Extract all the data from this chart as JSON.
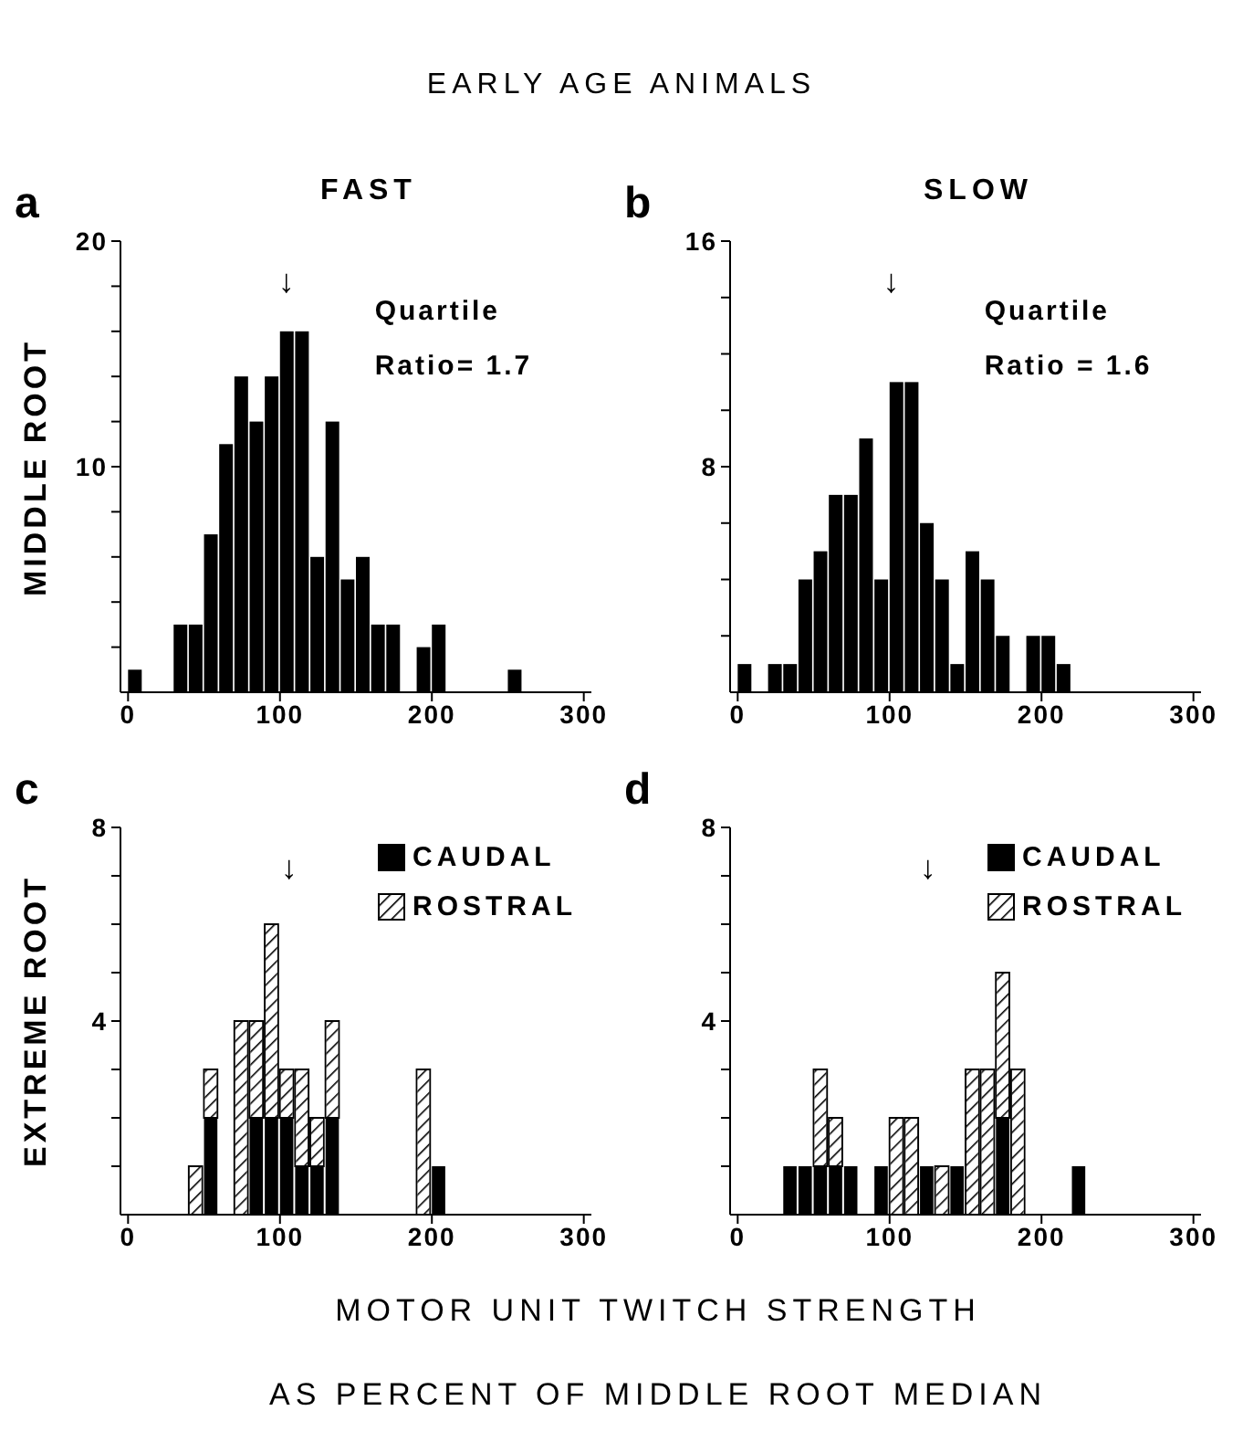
{
  "chart_data": [
    {
      "type": "histogram",
      "title": "EARLY AGE ANIMALS",
      "subtitle": "FAST",
      "ylabel": "MIDDLE ROOT",
      "color": "#000000",
      "bins": [
        0,
        10,
        20,
        30,
        40,
        50,
        60,
        70,
        80,
        90,
        100,
        110,
        120,
        130,
        140,
        150,
        160,
        170,
        180,
        190,
        200,
        210,
        220,
        230,
        240,
        250,
        260
      ],
      "values": [
        1,
        0,
        0,
        3,
        3,
        7,
        11,
        14,
        12,
        14,
        16,
        16,
        6,
        12,
        5,
        6,
        3,
        3,
        0,
        2,
        3,
        0,
        0,
        0,
        0,
        1
      ],
      "xlim": [
        -5,
        305
      ],
      "xticks": [
        0,
        100,
        200,
        300
      ],
      "ylim": [
        0,
        20
      ],
      "yticks": [
        {
          "value": 2,
          "label": null
        },
        {
          "value": 4,
          "label": null
        },
        {
          "value": 6,
          "label": null
        },
        {
          "value": 8,
          "label": null
        },
        10,
        {
          "value": 12,
          "label": null
        },
        {
          "value": 14,
          "label": null
        },
        {
          "value": 16,
          "label": null
        },
        {
          "value": 18,
          "label": null
        },
        20
      ],
      "annotations": [
        "a",
        "↓",
        "Quartile\nRatio= 1.7"
      ]
    },
    {
      "type": "histogram",
      "subtitle": "SLOW",
      "color": "#000000",
      "bins": [
        0,
        10,
        20,
        30,
        40,
        50,
        60,
        70,
        80,
        90,
        100,
        110,
        120,
        130,
        140,
        150,
        160,
        170,
        180,
        190,
        200,
        210,
        220
      ],
      "values": [
        1,
        0,
        1,
        1,
        4,
        5,
        7,
        7,
        9,
        4,
        11,
        11,
        6,
        4,
        1,
        5,
        4,
        2,
        0,
        2,
        2,
        1
      ],
      "xlim": [
        -5,
        305
      ],
      "xticks": [
        0,
        100,
        200,
        300
      ],
      "ylim": [
        0,
        16
      ],
      "yticks": [
        {
          "value": 2,
          "label": null
        },
        {
          "value": 4,
          "label": null
        },
        {
          "value": 6,
          "label": null
        },
        8,
        {
          "value": 10,
          "label": null
        },
        {
          "value": 12,
          "label": null
        },
        {
          "value": 14,
          "label": null
        },
        16
      ],
      "annotations": [
        "b",
        "↓",
        "Quartile\nRatio = 1.6"
      ]
    },
    {
      "type": "bar",
      "stacked": true,
      "ylabel": "EXTREME ROOT",
      "xlabel": "MOTOR UNIT TWITCH STRENGTH\nAS PERCENT OF MIDDLE ROOT MEDIAN",
      "legend": "top right",
      "x": [
        45,
        55,
        65,
        75,
        85,
        95,
        105,
        115,
        125,
        135,
        145,
        155,
        165,
        175,
        185,
        195,
        205
      ],
      "series": [
        {
          "name": "CAUDAL",
          "color": "#000000",
          "values": [
            0,
            2,
            0,
            0,
            2,
            2,
            2,
            1,
            1,
            2,
            0,
            0,
            0,
            0,
            0,
            0,
            1
          ]
        },
        {
          "name": "ROSTRAL",
          "color": "#ffffff",
          "values": [
            1,
            1,
            0,
            4,
            2,
            4,
            1,
            2,
            1,
            2,
            0,
            0,
            0,
            0,
            0,
            3,
            0
          ]
        }
      ],
      "xlim": [
        -5,
        305
      ],
      "xticks": [
        0,
        100,
        200,
        300
      ],
      "ylim": [
        0,
        8
      ],
      "yticks": [
        {
          "value": 1,
          "label": null
        },
        {
          "value": 2,
          "label": null
        },
        {
          "value": 3,
          "label": null
        },
        4,
        {
          "value": 5,
          "label": null
        },
        {
          "value": 6,
          "label": null
        },
        {
          "value": 7,
          "label": null
        },
        8
      ],
      "annotations": [
        "c",
        "↓"
      ]
    },
    {
      "type": "bar",
      "stacked": true,
      "legend": "top right",
      "x": [
        35,
        45,
        55,
        65,
        75,
        85,
        95,
        105,
        115,
        125,
        135,
        145,
        155,
        165,
        175,
        185,
        195,
        205,
        215,
        225
      ],
      "series": [
        {
          "name": "CAUDAL",
          "color": "#000000",
          "values": [
            1,
            1,
            1,
            1,
            1,
            0,
            1,
            0,
            0,
            1,
            0,
            1,
            0,
            0,
            2,
            0,
            0,
            0,
            0,
            1
          ]
        },
        {
          "name": "ROSTRAL",
          "color": "#ffffff",
          "values": [
            0,
            0,
            2,
            1,
            0,
            0,
            0,
            2,
            2,
            0,
            1,
            0,
            3,
            3,
            3,
            3,
            0,
            0,
            0,
            0
          ]
        }
      ],
      "xlim": [
        -5,
        305
      ],
      "xticks": [
        0,
        100,
        200,
        300
      ],
      "ylim": [
        0,
        8
      ],
      "yticks": [
        {
          "value": 1,
          "label": null
        },
        {
          "value": 2,
          "label": null
        },
        {
          "value": 3,
          "label": null
        },
        4,
        {
          "value": 5,
          "label": null
        },
        {
          "value": 6,
          "label": null
        },
        {
          "value": 7,
          "label": null
        },
        8
      ],
      "annotations": [
        "d",
        "↓"
      ]
    }
  ]
}
